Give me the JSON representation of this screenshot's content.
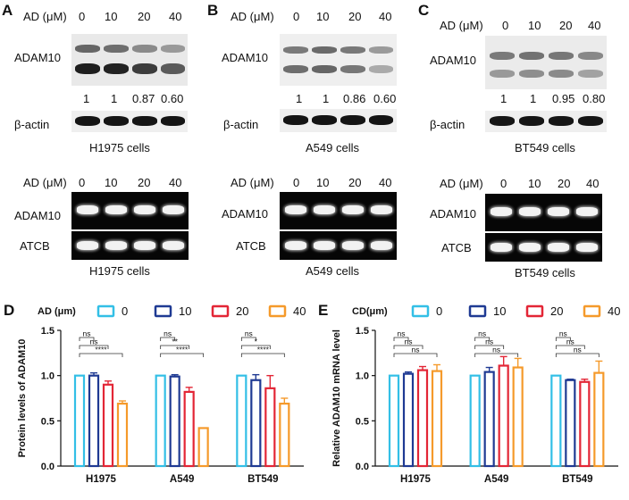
{
  "panels": {
    "A": {
      "letter": "A",
      "cells": "H1975 cells",
      "wb_protein": "ADAM10",
      "wb_loading": "β-actin",
      "rt_gene": "ADAM10",
      "rt_loading": "ATCB",
      "quant": [
        "1",
        "1",
        "0.87",
        "0.60"
      ]
    },
    "B": {
      "letter": "B",
      "cells": "A549 cells",
      "wb_protein": "ADAM10",
      "wb_loading": "β-actin",
      "rt_gene": "ADAM10",
      "rt_loading": "ATCB",
      "quant": [
        "1",
        "1",
        "0.86",
        "0.60"
      ]
    },
    "C": {
      "letter": "C",
      "cells": "BT549 cells",
      "wb_protein": "ADAM10",
      "wb_loading": "β-actin",
      "rt_gene": "ADAM10",
      "rt_loading": "ATCB",
      "quant": [
        "1",
        "1",
        "0.95",
        "0.80"
      ]
    }
  },
  "dose_label": "AD (μM)",
  "doses": [
    "0",
    "10",
    "20",
    "40"
  ],
  "colors": {
    "d0": "#33bfe6",
    "d10": "#1f3a93",
    "d20": "#e32636",
    "d40": "#f59a2b"
  },
  "chart_data": [
    {
      "panel": "D",
      "type": "bar",
      "ylabel": "Protein levels of ADAM10",
      "legend_title": "AD (μm)",
      "legend_position": "top",
      "ylim": [
        0,
        1.5
      ],
      "yticks": [
        "0.0",
        "0.5",
        "1.0",
        "1.5"
      ],
      "categories": [
        "H1975",
        "A549",
        "BT549"
      ],
      "series": [
        {
          "name": "0",
          "values": [
            1.0,
            1.0,
            1.0
          ],
          "errors": [
            0.0,
            0.0,
            0.0
          ]
        },
        {
          "name": "10",
          "values": [
            1.0,
            0.99,
            0.95
          ],
          "errors": [
            0.03,
            0.02,
            0.06
          ]
        },
        {
          "name": "20",
          "values": [
            0.9,
            0.82,
            0.86
          ],
          "errors": [
            0.04,
            0.05,
            0.14
          ]
        },
        {
          "name": "40",
          "values": [
            0.69,
            0.42,
            0.69
          ],
          "errors": [
            0.03,
            0.0,
            0.06
          ]
        }
      ],
      "significance": [
        [
          "ns",
          "ns",
          "****"
        ],
        [
          "ns",
          "**",
          "****"
        ],
        [
          "ns",
          "*",
          "****"
        ]
      ]
    },
    {
      "panel": "E",
      "type": "bar",
      "ylabel": "Relative ADAM10 mRNA level",
      "legend_title": "CD(μm)",
      "legend_position": "top",
      "ylim": [
        0,
        1.5
      ],
      "yticks": [
        "0.0",
        "0.5",
        "1.0",
        "1.5"
      ],
      "categories": [
        "H1975",
        "A549",
        "BT549"
      ],
      "series": [
        {
          "name": "0",
          "values": [
            1.0,
            1.0,
            1.0
          ],
          "errors": [
            0.0,
            0.0,
            0.0
          ]
        },
        {
          "name": "10",
          "values": [
            1.02,
            1.04,
            0.95
          ],
          "errors": [
            0.02,
            0.05,
            0.01
          ]
        },
        {
          "name": "20",
          "values": [
            1.06,
            1.11,
            0.93
          ],
          "errors": [
            0.04,
            0.1,
            0.03
          ]
        },
        {
          "name": "40",
          "values": [
            1.05,
            1.09,
            1.03
          ],
          "errors": [
            0.07,
            0.1,
            0.13
          ]
        }
      ],
      "significance": [
        [
          "ns",
          "ns",
          "ns"
        ],
        [
          "ns",
          "ns",
          "ns"
        ],
        [
          "ns",
          "ns",
          "ns"
        ]
      ]
    }
  ]
}
